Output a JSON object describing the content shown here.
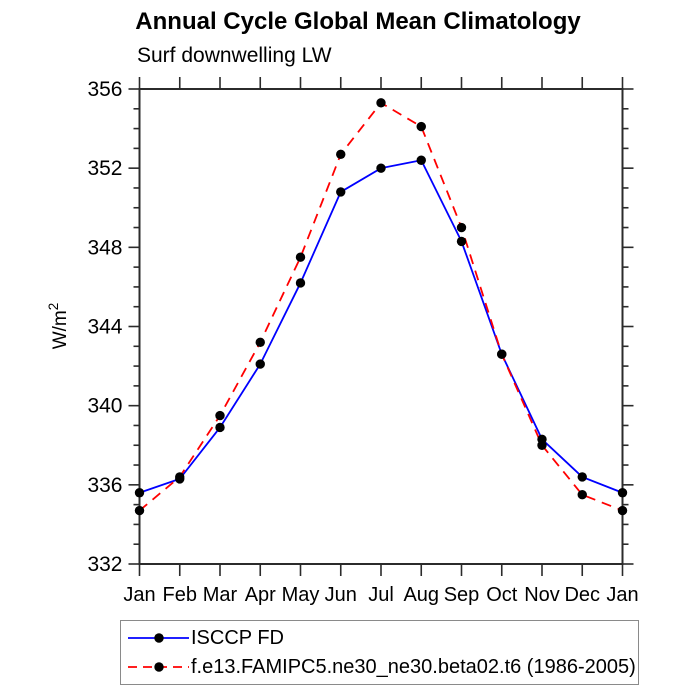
{
  "figure": {
    "title": "Annual Cycle Global Mean Climatology",
    "subtitle": "Surf downwelling LW"
  },
  "colors": {
    "background": "#ffffff",
    "axis": "#2b2b2b",
    "text": "#000000",
    "series_blue": "#0000ff",
    "series_red": "#ff0000",
    "marker": "#000000",
    "legend_border": "#8a8a8a"
  },
  "chart_data": {
    "type": "line",
    "title": "Annual Cycle Global Mean Climatology",
    "subtitle": "Surf downwelling LW",
    "xlabel": "",
    "ylabel": "W/m²",
    "categories": [
      "Jan",
      "Feb",
      "Mar",
      "Apr",
      "May",
      "Jun",
      "Jul",
      "Aug",
      "Sep",
      "Oct",
      "Nov",
      "Dec",
      "Jan"
    ],
    "ylim": [
      332,
      356
    ],
    "yticks": [
      332,
      336,
      340,
      344,
      348,
      352,
      356
    ],
    "ytick_major_step": 4,
    "ytick_minor_step": 1,
    "grid": false,
    "legend_position": "bottom-left-box",
    "series": [
      {
        "name": "ISCCP FD",
        "color": "#0000ff",
        "line_style": "solid",
        "marker": "filled-circle",
        "marker_color": "#000000",
        "values": [
          335.6,
          336.3,
          338.9,
          342.1,
          346.2,
          350.8,
          352.0,
          352.4,
          348.3,
          342.6,
          338.3,
          336.4,
          335.6
        ]
      },
      {
        "name": "f.e13.FAMIPC5.ne30_ne30.beta02.t6 (1986-2005)",
        "color": "#ff0000",
        "line_style": "dashed",
        "marker": "filled-circle",
        "marker_color": "#000000",
        "values": [
          334.7,
          336.4,
          339.5,
          343.2,
          347.5,
          352.7,
          355.3,
          354.1,
          349.0,
          342.6,
          338.0,
          335.5,
          334.7
        ]
      }
    ]
  }
}
